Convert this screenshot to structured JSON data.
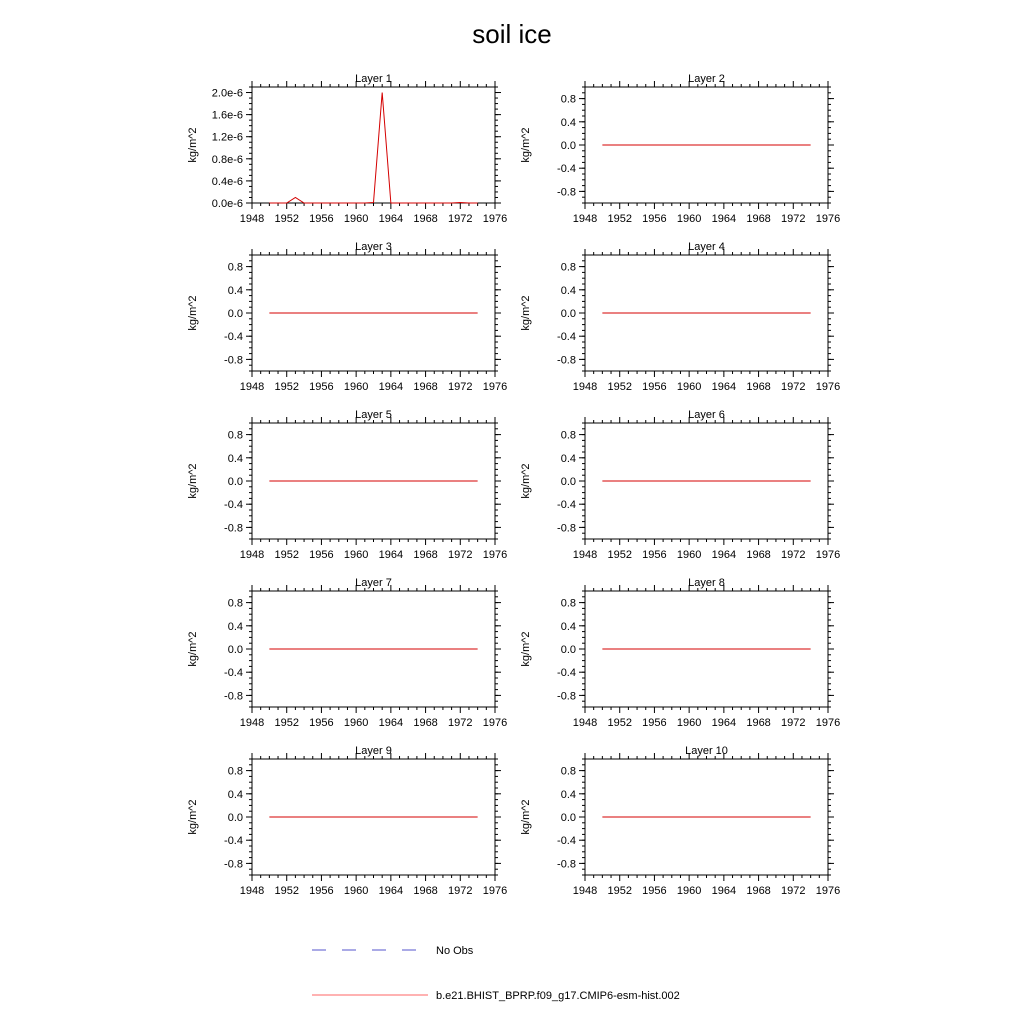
{
  "figure": {
    "title": "soil ice"
  },
  "legend": {
    "obs_label": "No Obs",
    "model_label": "b.e21.BHIST_BPRP.f09_g17.CMIP6-esm-hist.002",
    "obs_color": "#5555cc",
    "model_color": "#ff6666"
  },
  "chart_data": [
    {
      "type": "line",
      "title": "Layer 1",
      "ylabel": "kg/m^2",
      "xlim": [
        1948,
        1976
      ],
      "ylim": [
        0,
        2.1e-06
      ],
      "xticks": [
        "1948",
        "1952",
        "1956",
        "1960",
        "1964",
        "1968",
        "1972",
        "1976"
      ],
      "yticks": [
        "0.0e-6",
        "0.4e-6",
        "0.8e-6",
        "1.2e-6",
        "1.6e-6",
        "2.0e-6"
      ],
      "series": [
        {
          "color": "#d40000",
          "x": [
            1950,
            1951,
            1952,
            1953,
            1954,
            1955,
            1956,
            1957,
            1958,
            1959,
            1960,
            1961,
            1962,
            1963,
            1964,
            1965,
            1966,
            1967,
            1968,
            1969,
            1970,
            1971,
            1972,
            1973,
            1974
          ],
          "y": [
            0,
            0,
            0,
            1e-07,
            0,
            0,
            0,
            0,
            0,
            0,
            0,
            0,
            1e-08,
            2e-06,
            0,
            0,
            0,
            0,
            0,
            0,
            0,
            0,
            1e-08,
            0,
            0
          ]
        }
      ]
    },
    {
      "type": "line",
      "title": "Layer 2",
      "ylabel": "kg/m^2",
      "xlim": [
        1948,
        1976
      ],
      "ylim": [
        -1,
        1
      ],
      "xticks": [
        "1948",
        "1952",
        "1956",
        "1960",
        "1964",
        "1968",
        "1972",
        "1976"
      ],
      "yticks": [
        "-0.8",
        "-0.4",
        "0.0",
        "0.4",
        "0.8"
      ],
      "series": [
        {
          "color": "#d40000",
          "x": [
            1950,
            1974
          ],
          "y": [
            0,
            0
          ]
        }
      ]
    },
    {
      "type": "line",
      "title": "Layer 3",
      "ylabel": "kg/m^2",
      "xlim": [
        1948,
        1976
      ],
      "ylim": [
        -1,
        1
      ],
      "xticks": [
        "1948",
        "1952",
        "1956",
        "1960",
        "1964",
        "1968",
        "1972",
        "1976"
      ],
      "yticks": [
        "-0.8",
        "-0.4",
        "0.0",
        "0.4",
        "0.8"
      ],
      "series": [
        {
          "color": "#d40000",
          "x": [
            1950,
            1974
          ],
          "y": [
            0,
            0
          ]
        }
      ]
    },
    {
      "type": "line",
      "title": "Layer 4",
      "ylabel": "kg/m^2",
      "xlim": [
        1948,
        1976
      ],
      "ylim": [
        -1,
        1
      ],
      "xticks": [
        "1948",
        "1952",
        "1956",
        "1960",
        "1964",
        "1968",
        "1972",
        "1976"
      ],
      "yticks": [
        "-0.8",
        "-0.4",
        "0.0",
        "0.4",
        "0.8"
      ],
      "series": [
        {
          "color": "#d40000",
          "x": [
            1950,
            1974
          ],
          "y": [
            0,
            0
          ]
        }
      ]
    },
    {
      "type": "line",
      "title": "Layer 5",
      "ylabel": "kg/m^2",
      "xlim": [
        1948,
        1976
      ],
      "ylim": [
        -1,
        1
      ],
      "xticks": [
        "1948",
        "1952",
        "1956",
        "1960",
        "1964",
        "1968",
        "1972",
        "1976"
      ],
      "yticks": [
        "-0.8",
        "-0.4",
        "0.0",
        "0.4",
        "0.8"
      ],
      "series": [
        {
          "color": "#d40000",
          "x": [
            1950,
            1974
          ],
          "y": [
            0,
            0
          ]
        }
      ]
    },
    {
      "type": "line",
      "title": "Layer 6",
      "ylabel": "kg/m^2",
      "xlim": [
        1948,
        1976
      ],
      "ylim": [
        -1,
        1
      ],
      "xticks": [
        "1948",
        "1952",
        "1956",
        "1960",
        "1964",
        "1968",
        "1972",
        "1976"
      ],
      "yticks": [
        "-0.8",
        "-0.4",
        "0.0",
        "0.4",
        "0.8"
      ],
      "series": [
        {
          "color": "#d40000",
          "x": [
            1950,
            1974
          ],
          "y": [
            0,
            0
          ]
        }
      ]
    },
    {
      "type": "line",
      "title": "Layer 7",
      "ylabel": "kg/m^2",
      "xlim": [
        1948,
        1976
      ],
      "ylim": [
        -1,
        1
      ],
      "xticks": [
        "1948",
        "1952",
        "1956",
        "1960",
        "1964",
        "1968",
        "1972",
        "1976"
      ],
      "yticks": [
        "-0.8",
        "-0.4",
        "0.0",
        "0.4",
        "0.8"
      ],
      "series": [
        {
          "color": "#d40000",
          "x": [
            1950,
            1974
          ],
          "y": [
            0,
            0
          ]
        }
      ]
    },
    {
      "type": "line",
      "title": "Layer 8",
      "ylabel": "kg/m^2",
      "xlim": [
        1948,
        1976
      ],
      "ylim": [
        -1,
        1
      ],
      "xticks": [
        "1948",
        "1952",
        "1956",
        "1960",
        "1964",
        "1968",
        "1972",
        "1976"
      ],
      "yticks": [
        "-0.8",
        "-0.4",
        "0.0",
        "0.4",
        "0.8"
      ],
      "series": [
        {
          "color": "#d40000",
          "x": [
            1950,
            1974
          ],
          "y": [
            0,
            0
          ]
        }
      ]
    },
    {
      "type": "line",
      "title": "Layer 9",
      "ylabel": "kg/m^2",
      "xlim": [
        1948,
        1976
      ],
      "ylim": [
        -1,
        1
      ],
      "xticks": [
        "1948",
        "1952",
        "1956",
        "1960",
        "1964",
        "1968",
        "1972",
        "1976"
      ],
      "yticks": [
        "-0.8",
        "-0.4",
        "0.0",
        "0.4",
        "0.8"
      ],
      "series": [
        {
          "color": "#d40000",
          "x": [
            1950,
            1974
          ],
          "y": [
            0,
            0
          ]
        }
      ]
    },
    {
      "type": "line",
      "title": "Layer 10",
      "ylabel": "kg/m^2",
      "xlim": [
        1948,
        1976
      ],
      "ylim": [
        -1,
        1
      ],
      "xticks": [
        "1948",
        "1952",
        "1956",
        "1960",
        "1964",
        "1968",
        "1972",
        "1976"
      ],
      "yticks": [
        "-0.8",
        "-0.4",
        "0.0",
        "0.4",
        "0.8"
      ],
      "series": [
        {
          "color": "#d40000",
          "x": [
            1950,
            1974
          ],
          "y": [
            0,
            0
          ]
        }
      ]
    }
  ]
}
